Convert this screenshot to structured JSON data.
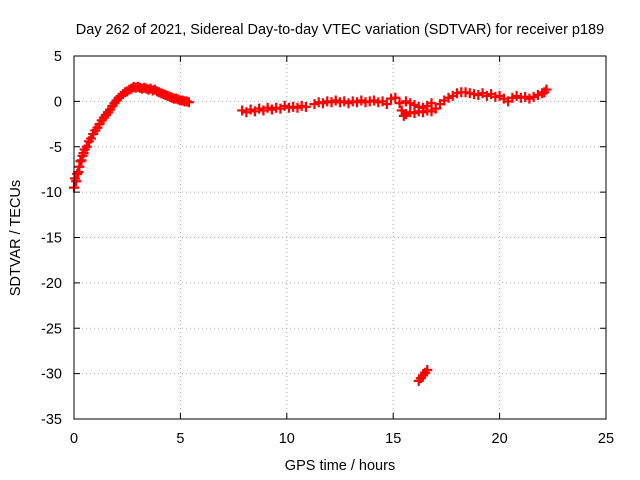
{
  "chart_data": {
    "type": "scatter",
    "title": "Day 262 of 2021, Sidereal Day-to-day VTEC variation (SDTVAR) for receiver p189",
    "xlabel": "GPS time / hours",
    "ylabel": "SDTVAR / TECUs",
    "xlim": [
      0,
      25
    ],
    "ylim": [
      -35,
      5
    ],
    "xticks": [
      0,
      5,
      10,
      15,
      20,
      25
    ],
    "yticks": [
      5,
      0,
      -5,
      -10,
      -15,
      -20,
      -25,
      -30,
      -35
    ],
    "grid": true,
    "legend": "none",
    "marker": "+",
    "series": [
      {
        "name": "SDTVAR",
        "color": "#ff0000",
        "points": [
          [
            0.0,
            -9.5
          ],
          [
            0.05,
            -8.5
          ],
          [
            0.1,
            -8.8
          ],
          [
            0.15,
            -8.0
          ],
          [
            0.2,
            -7.8
          ],
          [
            0.25,
            -7.2
          ],
          [
            0.3,
            -6.6
          ],
          [
            0.35,
            -6.5
          ],
          [
            0.4,
            -6.0
          ],
          [
            0.45,
            -5.7
          ],
          [
            0.5,
            -5.3
          ],
          [
            0.6,
            -5.0
          ],
          [
            0.7,
            -4.4
          ],
          [
            0.8,
            -4.1
          ],
          [
            0.9,
            -3.6
          ],
          [
            1.0,
            -3.2
          ],
          [
            1.1,
            -2.9
          ],
          [
            1.2,
            -2.5
          ],
          [
            1.3,
            -2.1
          ],
          [
            1.4,
            -1.8
          ],
          [
            1.5,
            -1.5
          ],
          [
            1.6,
            -1.2
          ],
          [
            1.7,
            -0.9
          ],
          [
            1.8,
            -0.5
          ],
          [
            1.9,
            -0.2
          ],
          [
            2.0,
            0.1
          ],
          [
            2.1,
            0.4
          ],
          [
            2.2,
            0.6
          ],
          [
            2.3,
            0.8
          ],
          [
            2.4,
            1.0
          ],
          [
            2.5,
            1.1
          ],
          [
            2.6,
            1.3
          ],
          [
            2.7,
            1.4
          ],
          [
            2.8,
            1.6
          ],
          [
            2.9,
            1.5
          ],
          [
            3.0,
            1.6
          ],
          [
            3.1,
            1.5
          ],
          [
            3.2,
            1.4
          ],
          [
            3.3,
            1.5
          ],
          [
            3.4,
            1.4
          ],
          [
            3.5,
            1.3
          ],
          [
            3.6,
            1.4
          ],
          [
            3.7,
            1.2
          ],
          [
            3.8,
            1.3
          ],
          [
            3.9,
            1.1
          ],
          [
            4.0,
            1.0
          ],
          [
            4.1,
            0.9
          ],
          [
            4.2,
            0.8
          ],
          [
            4.3,
            0.7
          ],
          [
            4.4,
            0.6
          ],
          [
            4.5,
            0.5
          ],
          [
            4.6,
            0.4
          ],
          [
            4.7,
            0.3
          ],
          [
            4.8,
            0.3
          ],
          [
            4.9,
            0.2
          ],
          [
            5.0,
            0.1
          ],
          [
            5.1,
            0.1
          ],
          [
            5.2,
            0.0
          ],
          [
            5.3,
            0.0
          ],
          [
            5.4,
            -0.1
          ],
          [
            7.9,
            -1.0
          ],
          [
            8.1,
            -1.2
          ],
          [
            8.3,
            -0.9
          ],
          [
            8.5,
            -1.1
          ],
          [
            8.7,
            -0.8
          ],
          [
            8.9,
            -1.0
          ],
          [
            9.1,
            -0.7
          ],
          [
            9.3,
            -0.9
          ],
          [
            9.5,
            -0.7
          ],
          [
            9.7,
            -0.8
          ],
          [
            9.9,
            -0.5
          ],
          [
            10.1,
            -0.7
          ],
          [
            10.3,
            -0.6
          ],
          [
            10.5,
            -0.7
          ],
          [
            10.7,
            -0.5
          ],
          [
            10.9,
            -0.6
          ],
          [
            11.3,
            -0.3
          ],
          [
            11.5,
            -0.1
          ],
          [
            11.7,
            -0.2
          ],
          [
            11.9,
            0.0
          ],
          [
            12.1,
            -0.1
          ],
          [
            12.3,
            0.1
          ],
          [
            12.5,
            -0.1
          ],
          [
            12.7,
            0.0
          ],
          [
            12.9,
            -0.2
          ],
          [
            13.1,
            0.0
          ],
          [
            13.3,
            -0.1
          ],
          [
            13.5,
            0.1
          ],
          [
            13.7,
            -0.1
          ],
          [
            13.9,
            0.0
          ],
          [
            14.1,
            0.1
          ],
          [
            14.3,
            -0.1
          ],
          [
            14.5,
            0.0
          ],
          [
            14.7,
            -0.3
          ],
          [
            14.9,
            0.3
          ],
          [
            15.1,
            0.4
          ],
          [
            15.3,
            -0.2
          ],
          [
            15.4,
            -1.0
          ],
          [
            15.5,
            -1.6
          ],
          [
            15.6,
            -1.4
          ],
          [
            15.8,
            -1.2
          ],
          [
            16.0,
            -1.3
          ],
          [
            16.2,
            -1.1
          ],
          [
            16.4,
            -1.2
          ],
          [
            16.6,
            -1.0
          ],
          [
            16.8,
            -1.1
          ],
          [
            15.6,
            0.0
          ],
          [
            15.8,
            -0.2
          ],
          [
            16.0,
            -0.4
          ],
          [
            16.2,
            -0.6
          ],
          [
            16.4,
            -0.7
          ],
          [
            16.6,
            -0.5
          ],
          [
            16.8,
            -0.2
          ],
          [
            17.0,
            -0.8
          ],
          [
            17.2,
            -0.3
          ],
          [
            17.4,
            0.1
          ],
          [
            17.6,
            0.4
          ],
          [
            17.8,
            0.6
          ],
          [
            18.0,
            0.9
          ],
          [
            18.2,
            1.0
          ],
          [
            18.4,
            1.0
          ],
          [
            18.6,
            0.9
          ],
          [
            18.8,
            0.8
          ],
          [
            19.0,
            0.7
          ],
          [
            19.2,
            0.9
          ],
          [
            19.4,
            0.6
          ],
          [
            19.6,
            0.8
          ],
          [
            19.8,
            0.5
          ],
          [
            20.0,
            0.6
          ],
          [
            20.2,
            0.3
          ],
          [
            20.4,
            0.0
          ],
          [
            20.6,
            0.4
          ],
          [
            20.8,
            0.6
          ],
          [
            21.0,
            0.4
          ],
          [
            21.2,
            0.5
          ],
          [
            21.4,
            0.3
          ],
          [
            21.6,
            0.5
          ],
          [
            21.8,
            0.7
          ],
          [
            22.0,
            0.9
          ],
          [
            22.1,
            1.0
          ],
          [
            22.2,
            1.3
          ],
          [
            16.2,
            -30.8
          ],
          [
            16.3,
            -30.5
          ],
          [
            16.4,
            -30.2
          ],
          [
            16.5,
            -29.9
          ],
          [
            16.6,
            -29.6
          ]
        ]
      }
    ]
  }
}
